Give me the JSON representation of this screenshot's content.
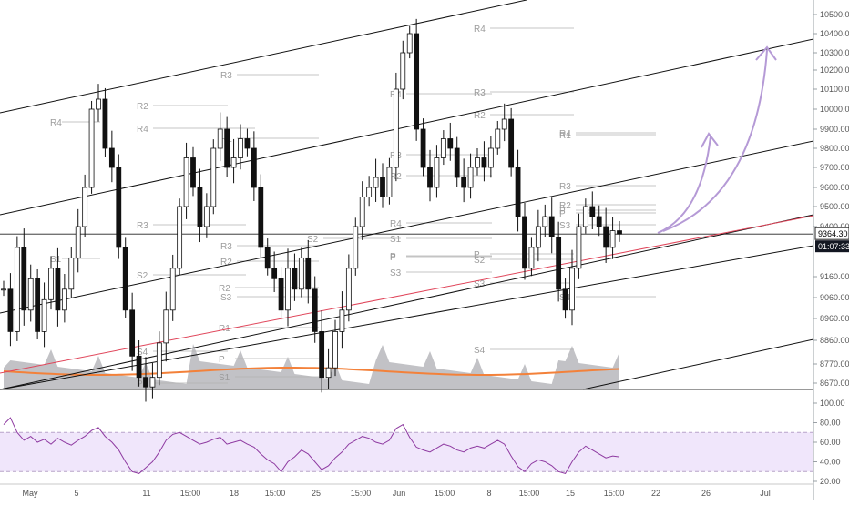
{
  "chart_data": [
    {
      "type": "candlestick",
      "title": "",
      "y_range": [
        8600,
        10600
      ],
      "y_ticks": [
        10500,
        10400,
        10300,
        10200,
        10100,
        10000,
        9900,
        9800,
        9700,
        9600,
        9500,
        9400,
        9160,
        9060,
        8960,
        8860,
        8770,
        8670
      ],
      "y_tick_labels": [
        "10500.00",
        "10400.00",
        "10300.00",
        "10200.00",
        "10100.00",
        "10000.00",
        "9900.00",
        "9800.00",
        "9700.00",
        "9600.00",
        "9500.00",
        "9400.00",
        "9160.00",
        "9060.00",
        "8960.00",
        "8860.00",
        "8770.00",
        "8670.00"
      ],
      "x_tick_labels": [
        "May",
        "5",
        "11",
        "15:00",
        "18",
        "15:00",
        "25",
        "15:00",
        "Jun",
        "15:00",
        "8",
        "15:00",
        "15",
        "15:00",
        "22",
        "26",
        "Jul"
      ],
      "price_badge": "9364.30",
      "time_badge": "01:07:33",
      "current_price": 9364.3,
      "price_path": [
        9100,
        8900,
        9300,
        9000,
        9150,
        8900,
        9050,
        9200,
        9000,
        9100,
        9250,
        9400,
        9600,
        10000,
        10050,
        9800,
        9700,
        9300,
        9000,
        8800,
        8700,
        8650,
        8700,
        8850,
        9000,
        9200,
        9500,
        9750,
        9600,
        9400,
        9500,
        9800,
        9900,
        9700,
        9750,
        9850,
        9800,
        9600,
        9300,
        9200,
        9150,
        9000,
        9200,
        9100,
        9250,
        9100,
        8900,
        8700,
        8750,
        8900,
        9000,
        9200,
        9400,
        9550,
        9600,
        9650,
        9550,
        9700,
        10100,
        10300,
        10400,
        9900,
        9700,
        9600,
        9750,
        9850,
        9800,
        9650,
        9600,
        9700,
        9750,
        9700,
        9800,
        9900,
        9950,
        9700,
        9450,
        9200,
        9300,
        9400,
        9450,
        9350,
        9100,
        9000,
        9200,
        9400,
        9500,
        9450,
        9400,
        9300,
        9380,
        9364
      ],
      "pivot_labels": [
        {
          "text": "R4",
          "y": 9900
        },
        {
          "text": "R3",
          "y": 9450
        },
        {
          "text": "R2",
          "y": 9260
        },
        {
          "text": "P",
          "y": 8660
        },
        {
          "text": "R4",
          "y": 9890
        },
        {
          "text": "R3",
          "y": 10180
        },
        {
          "text": "R2",
          "y": 10000
        },
        {
          "text": "R1",
          "y": 9860
        },
        {
          "text": "R3",
          "y": 9340
        },
        {
          "text": "R2",
          "y": 9090
        },
        {
          "text": "R1",
          "y": 8960
        },
        {
          "text": "P",
          "y": 8780
        },
        {
          "text": "S1",
          "y": 8680
        },
        {
          "text": "S2",
          "y": 9380
        },
        {
          "text": "P",
          "y": 9290
        },
        {
          "text": "S3",
          "y": 9230
        },
        {
          "text": "P",
          "y": 8930
        },
        {
          "text": "R4",
          "y": 9450
        },
        {
          "text": "R4",
          "y": 10080
        },
        {
          "text": "R3",
          "y": 9760
        },
        {
          "text": "R2",
          "y": 9640
        },
        {
          "text": "S1",
          "y": 9380
        },
        {
          "text": "P",
          "y": 9310
        },
        {
          "text": "S2",
          "y": 9280
        },
        {
          "text": "S3",
          "y": 9140
        },
        {
          "text": "S4",
          "y": 8830
        },
        {
          "text": "R4",
          "y": 10480
        },
        {
          "text": "R3",
          "y": 10090
        },
        {
          "text": "R2",
          "y": 9980
        },
        {
          "text": "R1",
          "y": 9860
        },
        {
          "text": "P",
          "y": 9520
        },
        {
          "text": "S3",
          "y": 9450
        },
        {
          "text": "S4",
          "y": 9040
        },
        {
          "text": "R4",
          "y": 9870
        },
        {
          "text": "R3",
          "y": 9600
        },
        {
          "text": "R2",
          "y": 9530
        },
        {
          "text": "P",
          "y": 9470
        },
        {
          "text": "S1",
          "y": 9280
        },
        {
          "text": "S2",
          "y": 9200
        },
        {
          "text": "S3",
          "y": 9050
        },
        {
          "text": "S4",
          "y": 8820
        }
      ],
      "channel_lines": "parallel ascending regression channel (black) with red median line",
      "volume_overlay": true,
      "moving_average": "orange line along volume area",
      "annotation": "two purple upward arrows projecting price higher"
    },
    {
      "type": "line",
      "title": "",
      "y_range": [
        20,
        100
      ],
      "y_ticks": [
        100,
        80,
        60,
        40,
        20
      ],
      "y_tick_labels": [
        "100.00",
        "80.00",
        "60.00",
        "40.00",
        "20.00"
      ],
      "band": [
        30,
        70
      ],
      "values": [
        78,
        85,
        70,
        62,
        66,
        60,
        63,
        58,
        64,
        60,
        57,
        62,
        66,
        72,
        75,
        66,
        60,
        52,
        40,
        30,
        28,
        34,
        40,
        50,
        62,
        68,
        70,
        66,
        62,
        58,
        60,
        63,
        65,
        58,
        60,
        62,
        58,
        55,
        48,
        42,
        38,
        30,
        40,
        45,
        52,
        48,
        40,
        32,
        36,
        44,
        50,
        58,
        62,
        66,
        64,
        60,
        58,
        62,
        74,
        78,
        65,
        55,
        52,
        50,
        54,
        58,
        56,
        52,
        50,
        54,
        56,
        54,
        58,
        62,
        58,
        46,
        35,
        30,
        38,
        42,
        40,
        36,
        30,
        28,
        40,
        50,
        56,
        52,
        48,
        44,
        46,
        45
      ]
    }
  ]
}
